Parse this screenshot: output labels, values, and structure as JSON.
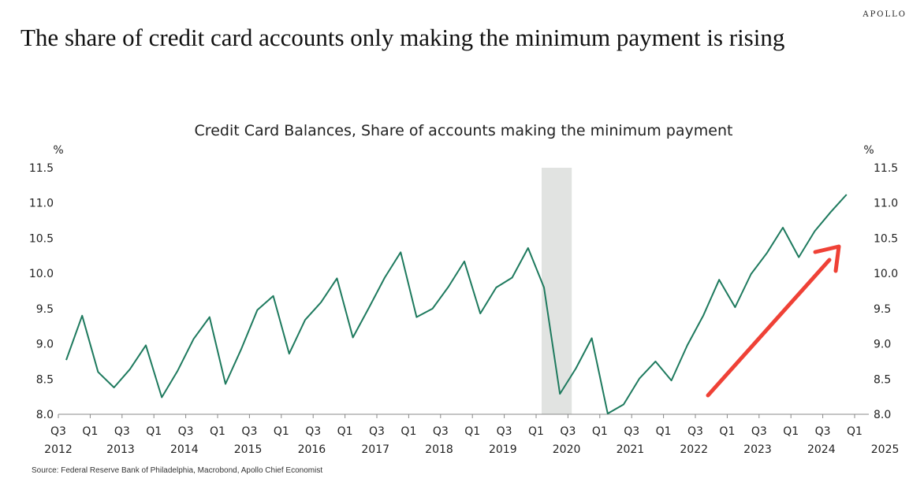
{
  "brand": "APOLLO",
  "headline": "The share of credit card accounts only making the minimum payment is rising",
  "source": "Source: Federal Reserve Bank of Philadelphia, Macrobond, Apollo Chief Economist",
  "colors": {
    "line": "#1e7a5e",
    "recession": "#e1e3e1",
    "arrow": "#ef4136",
    "text": "#222222",
    "axis": "#888888"
  },
  "chart_data": {
    "type": "line",
    "title": "Credit Card Balances, Share of accounts making the minimum payment",
    "ylabel_left": "%",
    "ylabel_right": "%",
    "ylim": [
      8.0,
      11.5
    ],
    "yticks": [
      8.0,
      8.5,
      9.0,
      9.5,
      10.0,
      10.5,
      11.0,
      11.5
    ],
    "ytick_labels": [
      "8.0",
      "8.5",
      "9.0",
      "9.5",
      "10.0",
      "10.5",
      "11.0",
      "11.5"
    ],
    "grid": false,
    "x_quarter_labels": [
      "Q3",
      "Q1",
      "Q3",
      "Q1",
      "Q3",
      "Q1",
      "Q3",
      "Q1",
      "Q3",
      "Q1",
      "Q3",
      "Q1",
      "Q3",
      "Q1",
      "Q3",
      "Q1",
      "Q3",
      "Q1",
      "Q3",
      "Q1",
      "Q3",
      "Q1",
      "Q3",
      "Q1",
      "Q3",
      "Q1"
    ],
    "x_year_labels": [
      "2012",
      "2013",
      "2014",
      "2015",
      "2016",
      "2017",
      "2018",
      "2019",
      "2020",
      "2021",
      "2022",
      "2023",
      "2024",
      "2025"
    ],
    "recession_shading": {
      "start": "2020 Q1",
      "end": "2020 Q2"
    },
    "annotation": "rising-arrow",
    "series": [
      {
        "x": [
          "2012 Q3",
          "2012 Q4",
          "2013 Q1",
          "2013 Q2",
          "2013 Q3",
          "2013 Q4",
          "2014 Q1",
          "2014 Q2",
          "2014 Q3",
          "2014 Q4",
          "2015 Q1",
          "2015 Q2",
          "2015 Q3",
          "2015 Q4",
          "2016 Q1",
          "2016 Q2",
          "2016 Q3",
          "2016 Q4",
          "2017 Q1",
          "2017 Q2",
          "2017 Q3",
          "2017 Q4",
          "2018 Q1",
          "2018 Q2",
          "2018 Q3",
          "2018 Q4",
          "2019 Q1",
          "2019 Q2",
          "2019 Q3",
          "2019 Q4",
          "2020 Q1",
          "2020 Q2",
          "2020 Q3",
          "2020 Q4",
          "2021 Q1",
          "2021 Q2",
          "2021 Q3",
          "2021 Q4",
          "2022 Q1",
          "2022 Q2",
          "2022 Q3",
          "2022 Q4",
          "2023 Q1",
          "2023 Q2",
          "2023 Q3",
          "2023 Q4",
          "2024 Q1",
          "2024 Q2",
          "2024 Q3",
          "2024 Q4"
        ],
        "values": [
          8.77,
          9.4,
          8.6,
          8.38,
          8.64,
          8.98,
          8.24,
          8.62,
          9.07,
          9.38,
          8.43,
          8.93,
          9.48,
          9.68,
          8.86,
          9.34,
          9.59,
          9.93,
          9.09,
          9.51,
          9.94,
          10.3,
          9.38,
          9.5,
          9.81,
          10.17,
          9.43,
          9.8,
          9.94,
          10.36,
          9.8,
          8.29,
          8.65,
          9.08,
          8.01,
          8.14,
          8.51,
          8.75,
          8.48,
          8.98,
          9.4,
          9.91,
          9.52,
          9.99,
          10.29,
          10.65,
          10.23,
          10.6,
          10.87,
          11.12
        ]
      }
    ]
  }
}
